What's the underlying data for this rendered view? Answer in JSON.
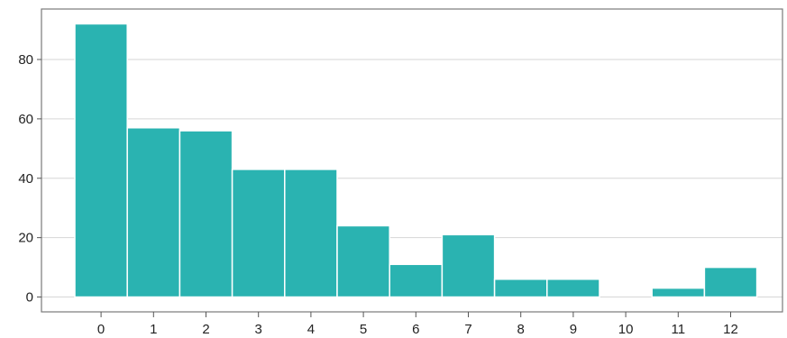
{
  "chart_data": {
    "type": "bar",
    "categories": [
      "0",
      "1",
      "2",
      "3",
      "4",
      "5",
      "6",
      "7",
      "8",
      "9",
      "10",
      "11",
      "12"
    ],
    "values": [
      92,
      57,
      56,
      43,
      43,
      24,
      11,
      21,
      6,
      6,
      0,
      3,
      10
    ],
    "title": "",
    "xlabel": "",
    "ylabel": "",
    "ylim": [
      -5,
      97
    ],
    "yticks": [
      "0",
      "20",
      "40",
      "60",
      "80"
    ],
    "grid": "horizontal",
    "legend": "none",
    "bar_color": "#2ab3b1"
  }
}
